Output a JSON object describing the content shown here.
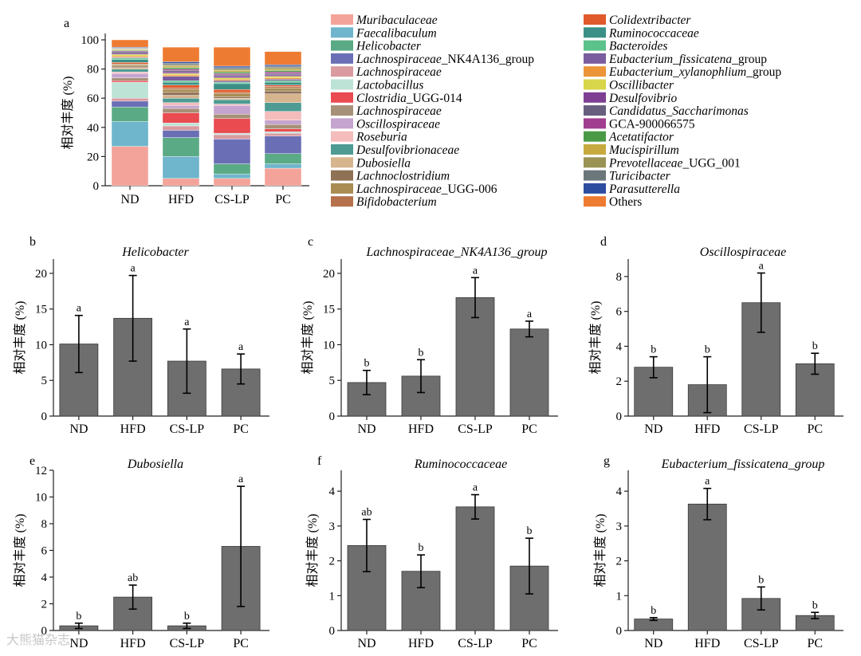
{
  "chart_data": [
    {
      "panel": "a",
      "type": "bar",
      "stacked": true,
      "categories": [
        "ND",
        "HFD",
        "CS-LP",
        "PC"
      ],
      "ylabel": "相对丰度 (%)",
      "ylim": [
        0,
        100
      ],
      "yticks": [
        0,
        20,
        40,
        60,
        80,
        100
      ],
      "legend_position": "right",
      "series": [
        {
          "name": "Muribaculaceae",
          "color": "#f4a39a",
          "italic": true,
          "values": [
            27,
            5,
            5,
            12
          ]
        },
        {
          "name": "Faecalibaculum",
          "color": "#6fb5cc",
          "italic": true,
          "values": [
            17,
            15,
            3,
            3
          ]
        },
        {
          "name": "Helicobacter",
          "color": "#5aaa85",
          "italic": true,
          "values": [
            10,
            13,
            7,
            7
          ]
        },
        {
          "name": "Lachnospiraceae_NK4A136_group",
          "color": "#6a6fb5",
          "italic_part": "Lachnospiraceae",
          "values": [
            4,
            5,
            17,
            12
          ]
        },
        {
          "name": "Lachnospiraceae",
          "color": "#d99ba0",
          "italic": true,
          "values": [
            2,
            3,
            3,
            2
          ]
        },
        {
          "name": "Lactobacillus",
          "color": "#bde3d6",
          "italic": true,
          "values": [
            11,
            2,
            1,
            1
          ]
        },
        {
          "name": "Clostridia_UGG-014",
          "color": "#e94b50",
          "italic_part": "Clostridia",
          "values": [
            1,
            7,
            10,
            2
          ]
        },
        {
          "name": "Lachnospiraceae",
          "color": "#a79078",
          "italic": true,
          "values": [
            2,
            3,
            3,
            3
          ]
        },
        {
          "name": "Oscillospiraceae",
          "color": "#c5a4cf",
          "italic": true,
          "values": [
            3,
            2,
            6,
            3
          ]
        },
        {
          "name": "Roseburia",
          "color": "#f5bcbc",
          "italic": true,
          "values": [
            1,
            2,
            1,
            6
          ]
        },
        {
          "name": "Desulfovibrionaceae",
          "color": "#4d9b92",
          "italic": true,
          "values": [
            2,
            3,
            3,
            6
          ]
        },
        {
          "name": "Dubosiella",
          "color": "#d6b48e",
          "italic": true,
          "values": [
            1,
            2,
            1,
            6
          ]
        },
        {
          "name": "Lachnoclostridium",
          "color": "#8f7156",
          "italic": true,
          "values": [
            1,
            2,
            1,
            2
          ]
        },
        {
          "name": "Lachnospiraceae_UGG-006",
          "color": "#a88c52",
          "italic_part": "Lachnospiraceae",
          "values": [
            1,
            2,
            2,
            2
          ]
        },
        {
          "name": "Bifidobacterium",
          "color": "#b5714b",
          "italic": true,
          "values": [
            0.5,
            1,
            1,
            1
          ]
        },
        {
          "name": "Colidextribacter",
          "color": "#e05a2b",
          "italic": true,
          "values": [
            1,
            2,
            2,
            1
          ]
        },
        {
          "name": "Ruminococcaceae",
          "color": "#3a9086",
          "italic": true,
          "values": [
            2,
            2,
            4,
            2
          ]
        },
        {
          "name": "Bacteroides",
          "color": "#5cc28c",
          "italic": true,
          "values": [
            1,
            1,
            1,
            1
          ]
        },
        {
          "name": "Eubacterium_fissicatena_group",
          "color": "#7a5d9e",
          "italic_part": "Eubacterium_fissicatena",
          "values": [
            0.5,
            3,
            1,
            1
          ]
        },
        {
          "name": "Eubacterium_xylanophlium_group",
          "color": "#ec9438",
          "italic_part": "Eubacterium_xylanophlium",
          "values": [
            1,
            1,
            1,
            1
          ]
        },
        {
          "name": "Oscillibacter",
          "color": "#d8d64a",
          "italic": true,
          "values": [
            1,
            1,
            1,
            1
          ]
        },
        {
          "name": "Desulfovibrio",
          "color": "#7e3f93",
          "italic": true,
          "values": [
            1,
            1,
            1,
            1
          ]
        },
        {
          "name": "Candidatus_Saccharimonas",
          "color": "#675f7d",
          "italic": true,
          "values": [
            1,
            1,
            1,
            1
          ]
        },
        {
          "name": "GCA-900066575",
          "color": "#a13e8f",
          "italic": false,
          "values": [
            0.5,
            1,
            1,
            1
          ]
        },
        {
          "name": "Acetatifactor",
          "color": "#4a9a45",
          "italic": true,
          "values": [
            0.5,
            1,
            1,
            1
          ]
        },
        {
          "name": "Mucispirillum",
          "color": "#c7aa3f",
          "italic": true,
          "values": [
            0.5,
            1,
            1,
            1
          ]
        },
        {
          "name": "Prevotellaceae_UGG_001",
          "color": "#999355",
          "italic_part": "Prevotellaceae",
          "values": [
            0.5,
            1,
            1,
            1
          ]
        },
        {
          "name": "Turicibacter",
          "color": "#6c777c",
          "italic": true,
          "values": [
            0.5,
            1,
            1,
            1
          ]
        },
        {
          "name": "Parasutterella",
          "color": "#2d4ea0",
          "italic": true,
          "values": [
            0.5,
            1,
            1,
            1
          ]
        },
        {
          "name": "Others",
          "color": "#ee7b32",
          "italic": false,
          "values": [
            5,
            10,
            13,
            9
          ]
        }
      ]
    },
    {
      "panel": "b",
      "type": "bar",
      "title": "Helicobacter",
      "ylabel": "相对丰度 (%)",
      "categories": [
        "ND",
        "HFD",
        "CS-LP",
        "PC"
      ],
      "ylim": [
        0,
        22
      ],
      "yticks": [
        0,
        5,
        10,
        15,
        20
      ],
      "values": [
        10.1,
        13.7,
        7.7,
        6.6
      ],
      "errors": [
        4.0,
        6.0,
        4.5,
        2.1
      ],
      "letters": [
        "a",
        "a",
        "a",
        "a"
      ]
    },
    {
      "panel": "c",
      "type": "bar",
      "title": "Lachnospiraceae_NK4A136_group",
      "title_italic_part": "Lachnospiraceae",
      "ylabel": "相对丰度 (%)",
      "categories": [
        "ND",
        "HFD",
        "CS-LP",
        "PC"
      ],
      "ylim": [
        0,
        22
      ],
      "yticks": [
        0,
        5,
        10,
        15,
        20
      ],
      "values": [
        4.7,
        5.6,
        16.6,
        12.2
      ],
      "errors": [
        1.7,
        2.3,
        2.8,
        1.1
      ],
      "letters": [
        "b",
        "b",
        "a",
        "a"
      ]
    },
    {
      "panel": "d",
      "type": "bar",
      "title": "Oscillospiraceae",
      "ylabel": "相对丰度 (%)",
      "categories": [
        "ND",
        "HFD",
        "CS-LP",
        "PC"
      ],
      "ylim": [
        0,
        9
      ],
      "yticks": [
        0,
        2,
        4,
        6,
        8
      ],
      "values": [
        2.8,
        1.8,
        6.5,
        3.0
      ],
      "errors": [
        0.6,
        1.6,
        1.7,
        0.6
      ],
      "letters": [
        "b",
        "b",
        "a",
        "b"
      ]
    },
    {
      "panel": "e",
      "type": "bar",
      "title": "Dubosiella",
      "ylabel": "相对丰度 (%)",
      "categories": [
        "ND",
        "HFD",
        "CS-LP",
        "PC"
      ],
      "ylim": [
        0,
        12
      ],
      "yticks": [
        0,
        2,
        4,
        6,
        8,
        10,
        12
      ],
      "values": [
        0.35,
        2.5,
        0.35,
        6.3
      ],
      "errors": [
        0.2,
        0.9,
        0.2,
        4.5
      ],
      "letters": [
        "b",
        "ab",
        "b",
        "a"
      ]
    },
    {
      "panel": "f",
      "type": "bar",
      "title": "Ruminococcaceae",
      "ylabel": "相对丰度 (%)",
      "categories": [
        "ND",
        "HFD",
        "CS-LP",
        "PC"
      ],
      "ylim": [
        0,
        4.6
      ],
      "yticks": [
        0,
        1,
        2,
        3,
        4
      ],
      "values": [
        2.44,
        1.7,
        3.55,
        1.85
      ],
      "errors": [
        0.75,
        0.47,
        0.35,
        0.8
      ],
      "letters": [
        "ab",
        "b",
        "a",
        "b"
      ]
    },
    {
      "panel": "g",
      "type": "bar",
      "title": "Eubacterium_fissicatena_group",
      "title_italic_part": "Eubacterium_fissicatena",
      "ylabel": "相对丰度 (%)",
      "categories": [
        "ND",
        "HFD",
        "CS-LP",
        "PC"
      ],
      "ylim": [
        0,
        4.6
      ],
      "yticks": [
        0,
        1,
        2,
        3,
        4
      ],
      "values": [
        0.33,
        3.63,
        0.92,
        0.43
      ],
      "errors": [
        0.04,
        0.45,
        0.33,
        0.09
      ],
      "letters": [
        "b",
        "a",
        "b",
        "b"
      ]
    }
  ],
  "watermark": "大熊猫杂志"
}
